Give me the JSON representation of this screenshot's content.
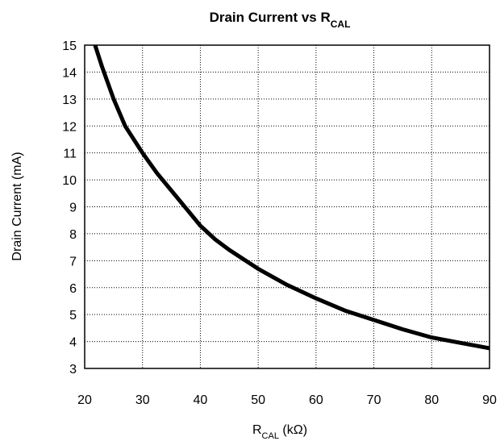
{
  "chart_data": {
    "type": "line",
    "title": {
      "main": "Drain Current vs R",
      "subscript": "CAL"
    },
    "xlabel": {
      "main": "R",
      "subscript": "CAL",
      "suffix": " (kΩ)"
    },
    "ylabel": "Drain Current (mA)",
    "xlim": [
      20,
      90
    ],
    "ylim": [
      3,
      15
    ],
    "x_ticks": [
      20,
      30,
      40,
      50,
      60,
      70,
      80,
      90
    ],
    "y_ticks": [
      3,
      4,
      5,
      6,
      7,
      8,
      9,
      10,
      11,
      12,
      13,
      14,
      15
    ],
    "grid": true,
    "series": [
      {
        "color": "#000000",
        "x": [
          21.8,
          23,
          25,
          27,
          30,
          32.5,
          35,
          37.5,
          40,
          42.5,
          45,
          50,
          55,
          60,
          65,
          70,
          75,
          80,
          85,
          90
        ],
        "y": [
          15,
          14.2,
          13.0,
          12.0,
          11.0,
          10.25,
          9.6,
          8.95,
          8.3,
          7.8,
          7.4,
          6.7,
          6.1,
          5.6,
          5.15,
          4.8,
          4.45,
          4.15,
          3.95,
          3.75
        ]
      }
    ]
  }
}
